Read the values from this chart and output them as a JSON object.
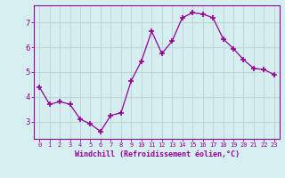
{
  "x": [
    0,
    1,
    2,
    3,
    4,
    5,
    6,
    7,
    8,
    9,
    10,
    11,
    12,
    13,
    14,
    15,
    16,
    17,
    18,
    19,
    20,
    21,
    22,
    23
  ],
  "y": [
    4.4,
    3.7,
    3.8,
    3.7,
    3.1,
    2.9,
    2.6,
    3.25,
    3.35,
    4.65,
    5.45,
    6.65,
    5.75,
    6.25,
    7.2,
    7.4,
    7.35,
    7.2,
    6.35,
    5.95,
    5.5,
    5.15,
    5.1,
    4.9
  ],
  "line_color": "#990099",
  "marker": "+",
  "marker_size": 4,
  "bg_color": "#d5eef0",
  "grid_color": "#c0d8dc",
  "xlabel": "Windchill (Refroidissement éolien,°C)",
  "xlabel_color": "#990099",
  "tick_color": "#990099",
  "ylabel_ticks": [
    3,
    4,
    5,
    6,
    7
  ],
  "xlim": [
    -0.5,
    23.5
  ],
  "ylim": [
    2.3,
    7.7
  ],
  "title": ""
}
